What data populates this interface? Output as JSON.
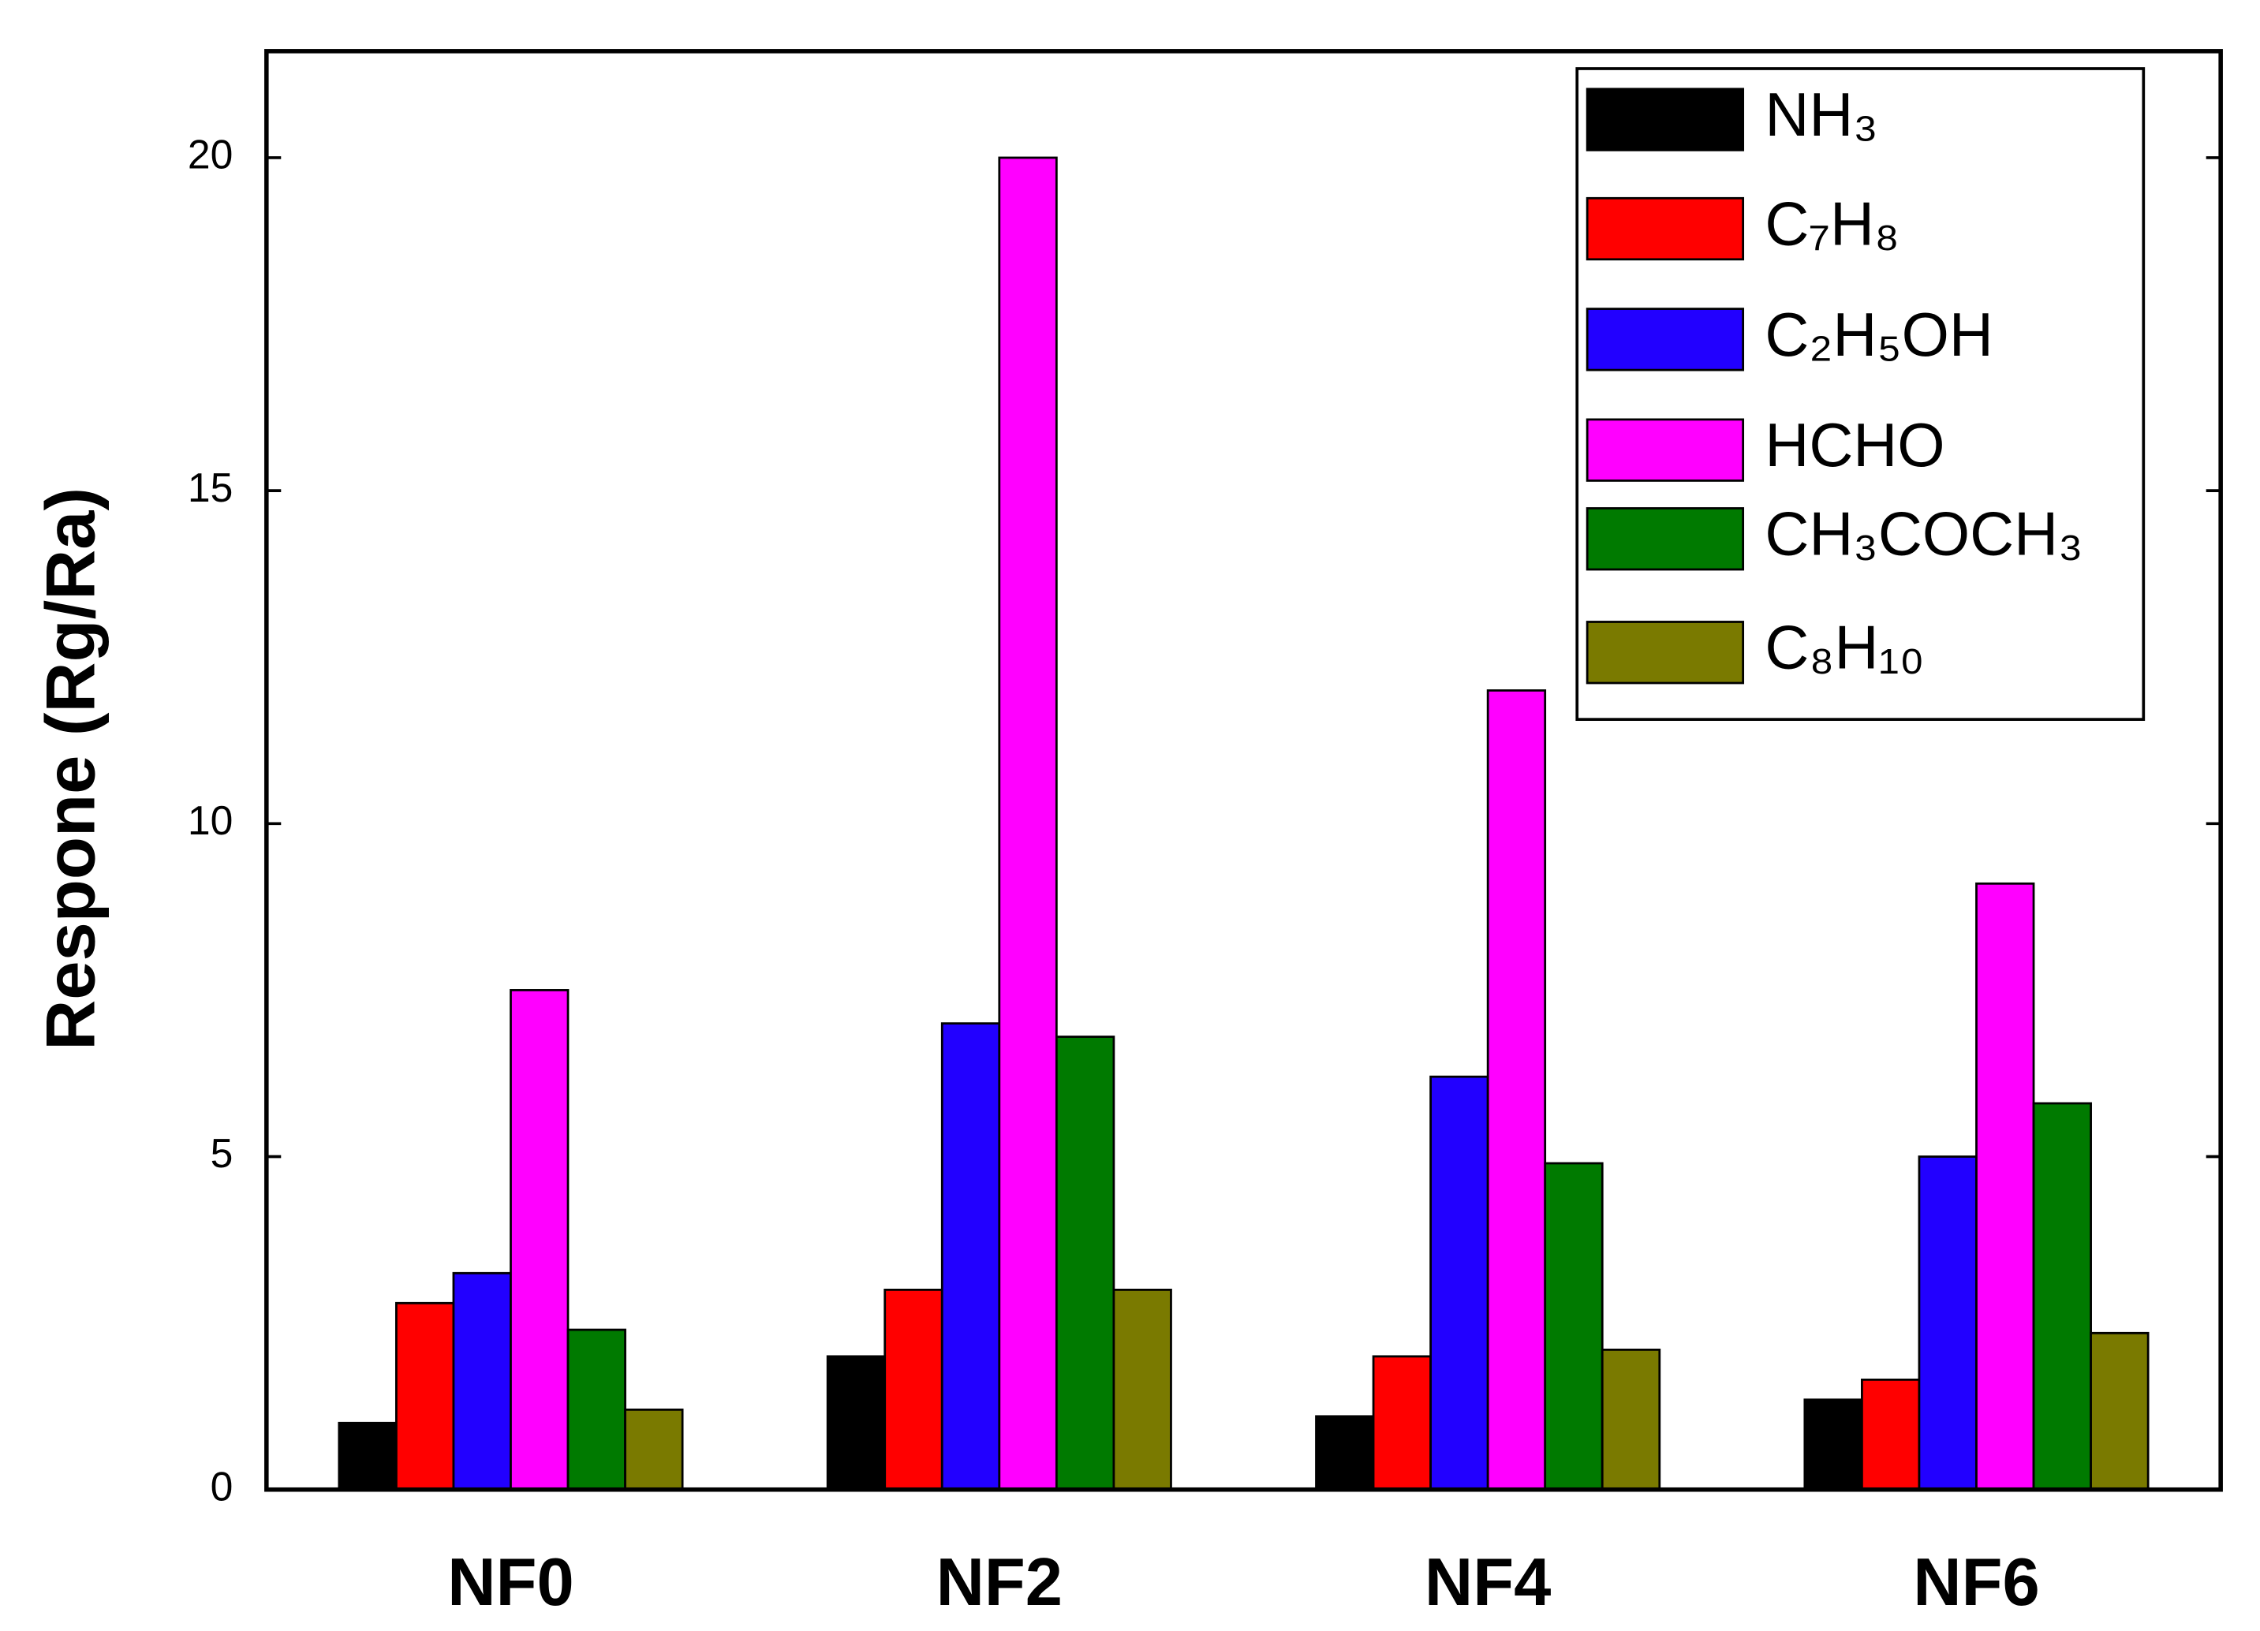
{
  "chart_data": {
    "type": "bar",
    "y_label": "Respone (Rg/Ra)",
    "categories": [
      "NF0",
      "NF2",
      "NF4",
      "NF6"
    ],
    "series": [
      {
        "name": "NH₃",
        "color": "#000000",
        "values": [
          1.0,
          2.0,
          1.1,
          1.35
        ]
      },
      {
        "name": "C₇H₈",
        "color": "#ff0000",
        "values": [
          2.8,
          3.0,
          2.0,
          1.65
        ]
      },
      {
        "name": "C₂H₅OH",
        "color": "#2200ff",
        "values": [
          3.25,
          7.0,
          6.2,
          5.0
        ]
      },
      {
        "name": "HCHO",
        "color": "#ff00ff",
        "values": [
          7.5,
          20.0,
          12.0,
          9.1
        ]
      },
      {
        "name": "CH₃COCH₃",
        "color": "#007a00",
        "values": [
          2.4,
          6.8,
          4.9,
          5.8
        ]
      },
      {
        "name": "C₈H₁₀",
        "color": "#7a7a00",
        "values": [
          1.2,
          3.0,
          2.1,
          2.35
        ]
      }
    ],
    "ylim": [
      0,
      21.6
    ],
    "yticks": [
      0,
      5,
      10,
      15,
      20
    ],
    "legend": "upper-right"
  }
}
